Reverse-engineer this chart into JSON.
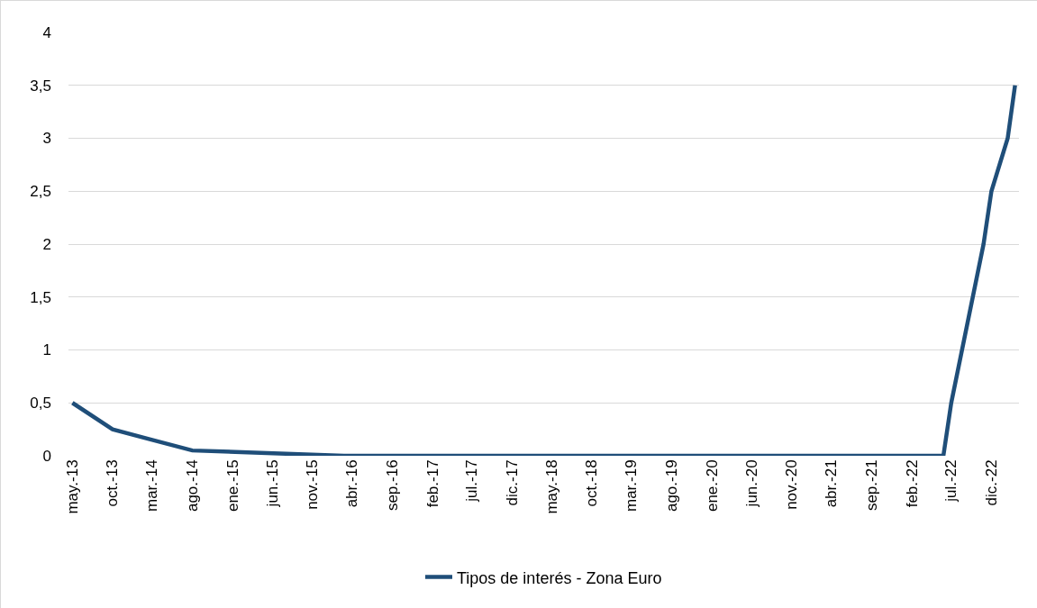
{
  "chart_data": {
    "type": "line",
    "x": [
      "2013-05",
      "2013-10",
      "2014-03",
      "2014-08",
      "2016-03",
      "2022-06",
      "2022-07",
      "2022-11",
      "2022-12",
      "2023-02",
      "2023-03"
    ],
    "series": [
      {
        "name": "Tipos de interés - Zona Euro",
        "color": "#1f4e79",
        "values": [
          0.5,
          0.25,
          0.15,
          0.05,
          0,
          0,
          0.5,
          2,
          2.5,
          3,
          3.5
        ]
      }
    ],
    "xlim": [
      "2013-04-16",
      "2023-03-16"
    ],
    "xticks": [
      {
        "value": "2013-05",
        "label": "may.-13"
      },
      {
        "value": "2013-10",
        "label": "oct.-13"
      },
      {
        "value": "2014-03",
        "label": "mar.-14"
      },
      {
        "value": "2014-08",
        "label": "ago.-14"
      },
      {
        "value": "2015-01",
        "label": "ene.-15"
      },
      {
        "value": "2015-06",
        "label": "jun.-15"
      },
      {
        "value": "2015-11",
        "label": "nov.-15"
      },
      {
        "value": "2016-04",
        "label": "abr.-16"
      },
      {
        "value": "2016-09",
        "label": "sep.-16"
      },
      {
        "value": "2017-02",
        "label": "feb.-17"
      },
      {
        "value": "2017-07",
        "label": "jul.-17"
      },
      {
        "value": "2017-12",
        "label": "dic.-17"
      },
      {
        "value": "2018-05",
        "label": "may.-18"
      },
      {
        "value": "2018-10",
        "label": "oct.-18"
      },
      {
        "value": "2019-03",
        "label": "mar.-19"
      },
      {
        "value": "2019-08",
        "label": "ago.-19"
      },
      {
        "value": "2020-01",
        "label": "ene.-20"
      },
      {
        "value": "2020-06",
        "label": "jun.-20"
      },
      {
        "value": "2020-11",
        "label": "nov.-20"
      },
      {
        "value": "2021-04",
        "label": "abr.-21"
      },
      {
        "value": "2021-09",
        "label": "sep.-21"
      },
      {
        "value": "2022-02",
        "label": "feb.-22"
      },
      {
        "value": "2022-07",
        "label": "jul.-22"
      },
      {
        "value": "2022-12",
        "label": "dic.-22"
      }
    ],
    "ylim": [
      0,
      4
    ],
    "yticks": [
      0,
      {
        "value": 0.5,
        "label": "0,5"
      },
      1,
      {
        "value": 1.5,
        "label": "1,5"
      },
      2,
      {
        "value": 2.5,
        "label": "2,5"
      },
      3,
      {
        "value": 3.5,
        "label": "3,5"
      },
      4
    ],
    "grid": "y",
    "legend": "bottom",
    "marker": "none",
    "line_style": "solid"
  }
}
